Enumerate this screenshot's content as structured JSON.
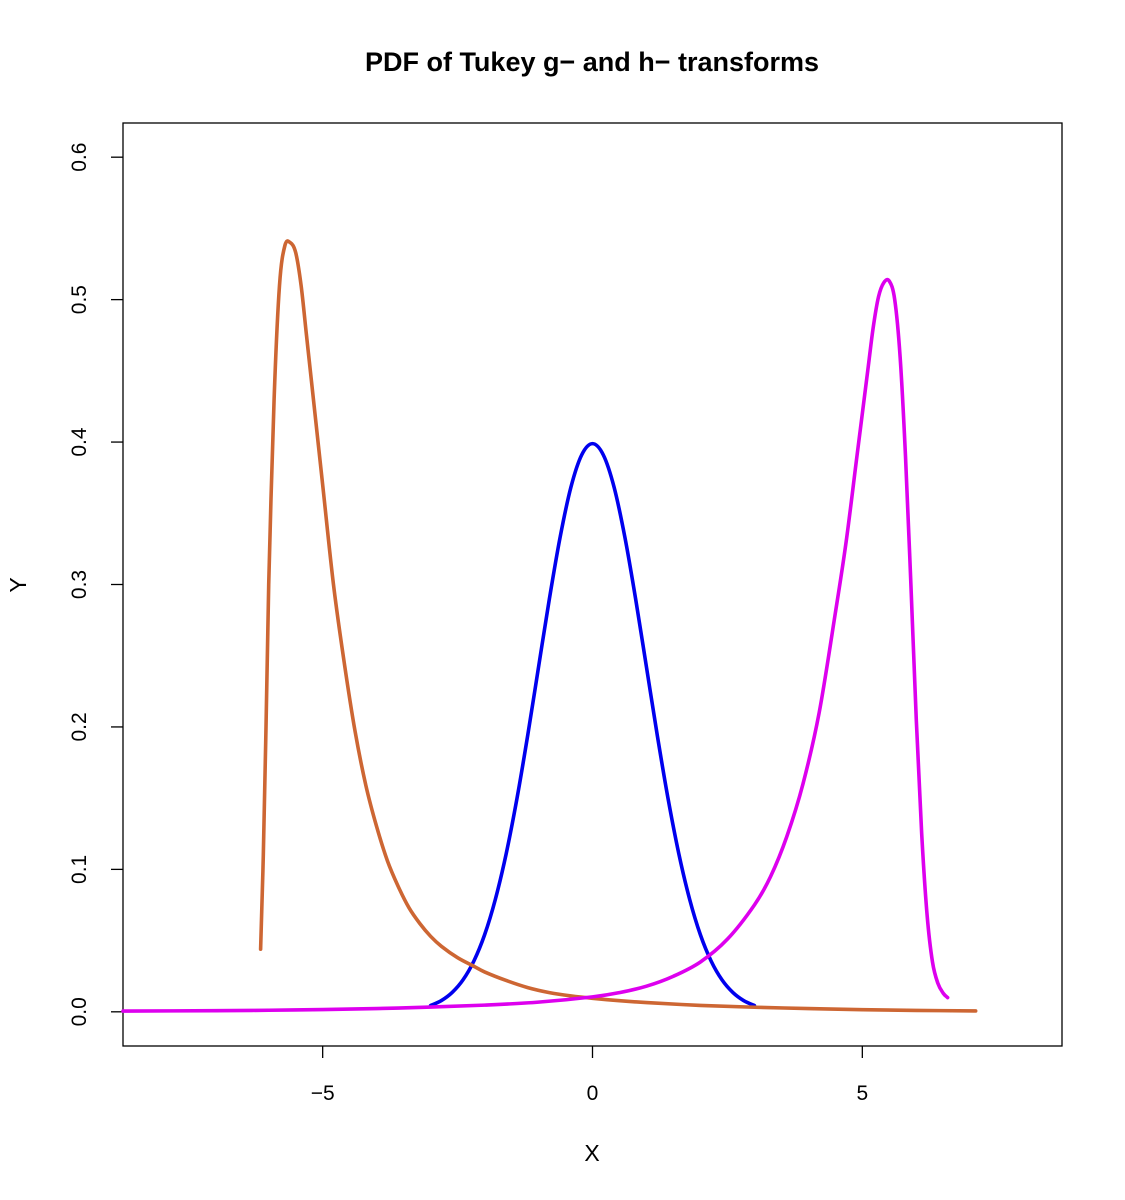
{
  "chart_data": {
    "type": "line",
    "title": "PDF of Tukey g− and h− transforms",
    "xlabel": "X",
    "ylabel": "Y",
    "xlim": [
      -8.7,
      8.7
    ],
    "ylim": [
      -0.024,
      0.624
    ],
    "xticks": [
      -5,
      0,
      5
    ],
    "xtick_labels": [
      "−5",
      "0",
      "5"
    ],
    "yticks": [
      0.0,
      0.1,
      0.2,
      0.3,
      0.4,
      0.5,
      0.6
    ],
    "ytick_labels": [
      "0.0",
      "0.1",
      "0.2",
      "0.3",
      "0.4",
      "0.5",
      "0.6"
    ],
    "grid": false,
    "series": [
      {
        "color": "#0000ee",
        "x": [
          -3.0,
          -2.8,
          -2.6,
          -2.4,
          -2.2,
          -2.0,
          -1.8,
          -1.6,
          -1.4,
          -1.2,
          -1.0,
          -0.8,
          -0.6,
          -0.4,
          -0.2,
          0.0,
          0.2,
          0.4,
          0.6,
          0.8,
          1.0,
          1.2,
          1.4,
          1.6,
          1.8,
          2.0,
          2.2,
          2.4,
          2.6,
          2.8,
          3.0
        ],
        "y": [
          0.0044,
          0.0079,
          0.0136,
          0.0224,
          0.0355,
          0.054,
          0.079,
          0.1109,
          0.1497,
          0.1942,
          0.242,
          0.2897,
          0.3332,
          0.3683,
          0.391,
          0.3989,
          0.391,
          0.3683,
          0.3332,
          0.2897,
          0.242,
          0.1942,
          0.1497,
          0.1109,
          0.079,
          0.054,
          0.0355,
          0.0224,
          0.0136,
          0.0079,
          0.0044
        ]
      },
      {
        "color": "#cd6633",
        "x": [
          -6.15,
          -6.1,
          -6.05,
          -6.0,
          -5.9,
          -5.8,
          -5.7,
          -5.6,
          -5.5,
          -5.4,
          -5.3,
          -5.2,
          -5.0,
          -4.8,
          -4.6,
          -4.4,
          -4.2,
          -4.0,
          -3.8,
          -3.6,
          -3.4,
          -3.2,
          -3.0,
          -2.8,
          -2.5,
          -2.2,
          -2.0,
          -1.6,
          -1.2,
          -0.8,
          -0.4,
          0.0,
          0.5,
          1.0,
          2.0,
          3.0,
          4.0,
          5.0,
          6.0,
          7.1
        ],
        "y": [
          0.044,
          0.11,
          0.2,
          0.3,
          0.43,
          0.51,
          0.538,
          0.54,
          0.533,
          0.51,
          0.475,
          0.44,
          0.37,
          0.3,
          0.245,
          0.197,
          0.159,
          0.13,
          0.106,
          0.088,
          0.073,
          0.062,
          0.053,
          0.046,
          0.038,
          0.032,
          0.028,
          0.022,
          0.017,
          0.0135,
          0.0112,
          0.0095,
          0.0078,
          0.0065,
          0.0045,
          0.0032,
          0.0023,
          0.0015,
          0.001,
          0.0006
        ]
      },
      {
        "color": "#dd00ee",
        "x": [
          -8.7,
          -7.0,
          -6.0,
          -5.0,
          -4.0,
          -3.0,
          -2.0,
          -1.0,
          0.0,
          0.5,
          1.0,
          1.5,
          2.0,
          2.5,
          3.0,
          3.3,
          3.6,
          3.9,
          4.2,
          4.5,
          4.7,
          4.9,
          5.1,
          5.2,
          5.3,
          5.4,
          5.5,
          5.6,
          5.7,
          5.8,
          5.9,
          6.0,
          6.1,
          6.2,
          6.3,
          6.4,
          6.5,
          6.58
        ],
        "y": [
          0.0005,
          0.0008,
          0.0011,
          0.0016,
          0.0023,
          0.0033,
          0.0047,
          0.0068,
          0.0105,
          0.0135,
          0.018,
          0.025,
          0.035,
          0.051,
          0.075,
          0.095,
          0.123,
          0.16,
          0.21,
          0.28,
          0.33,
          0.39,
          0.45,
          0.48,
          0.502,
          0.512,
          0.513,
          0.5,
          0.46,
          0.39,
          0.3,
          0.205,
          0.125,
          0.068,
          0.035,
          0.02,
          0.013,
          0.01
        ]
      }
    ]
  }
}
